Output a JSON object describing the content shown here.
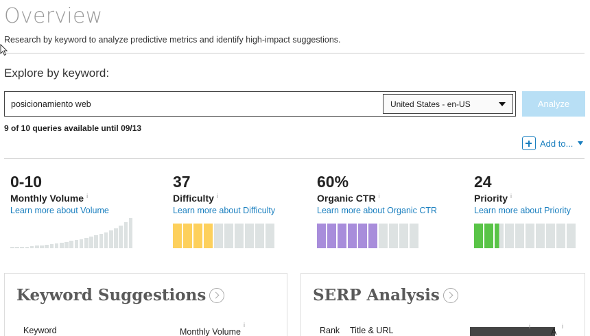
{
  "header": {
    "title": "Overview",
    "subtitle": "Research by keyword to analyze predictive metrics and identify high-impact suggestions."
  },
  "explore": {
    "label": "Explore by keyword:",
    "keyword_value": "posicionamiento web",
    "locale_selected": "United States - en-US",
    "analyze_label": "Analyze",
    "queries_note": "9 of 10 queries available until 09/13",
    "add_to_label": "Add to..."
  },
  "metrics": [
    {
      "value": "0-10",
      "label": "Monthly Volume",
      "info": "i",
      "link": "Learn more about Volume",
      "color": "#dde2e2"
    },
    {
      "value": "37",
      "label": "Difficulty",
      "info": "i",
      "link": "Learn more about Difficulty",
      "color": "#fdd05c",
      "filled_segments": 4,
      "total_segments": 10
    },
    {
      "value": "60%",
      "label": "Organic CTR",
      "info": "i",
      "link": "Learn more about Organic CTR",
      "color": "#a88ddb",
      "filled_segments": 6,
      "total_segments": 10
    },
    {
      "value": "24",
      "label": "Priority",
      "info": "i",
      "link": "Learn more about Priority",
      "color": "#59c447",
      "filled_segments": 2.5,
      "total_segments": 10
    }
  ],
  "volume_bars": [
    1,
    2,
    3,
    4,
    5,
    6,
    7,
    8,
    9,
    11,
    13,
    15,
    17,
    19,
    21,
    24,
    27,
    30,
    33,
    37,
    41,
    46,
    52,
    60,
    70
  ],
  "cards": {
    "keyword_suggestions": {
      "title": "Keyword Suggestions",
      "col_keyword": "Keyword",
      "col_volume": "Monthly Volume",
      "info": "i"
    },
    "serp_analysis": {
      "title": "SERP Analysis",
      "col_rank": "Rank",
      "col_title": "Title & URL",
      "info": "i",
      "partial_col": "A"
    }
  },
  "colors": {
    "accent": "#1a7fbf",
    "analyze_disabled": "#b8dff5",
    "segment_empty": "#dde2e2"
  }
}
